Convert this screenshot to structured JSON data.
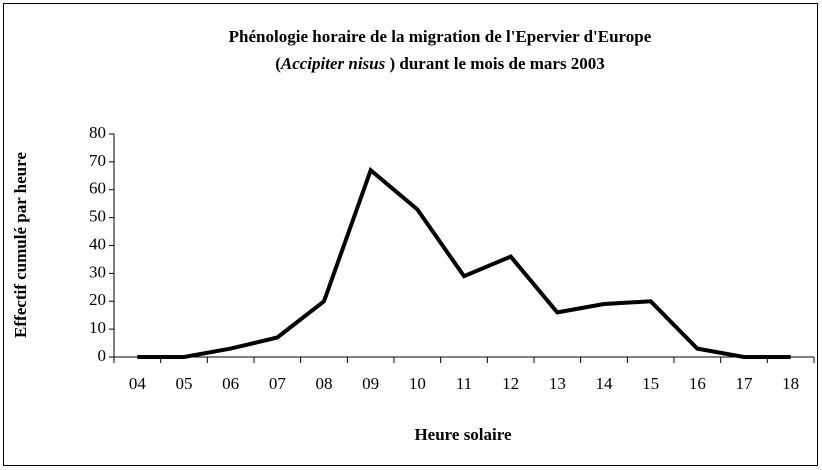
{
  "chart_data": {
    "type": "line",
    "title_lines": [
      [
        {
          "text": "Phénologie horaire de la migration de l'Epervier d'Europe",
          "italic": false
        }
      ],
      [
        {
          "text": "(",
          "italic": false
        },
        {
          "text": "Accipiter nisus",
          "italic": true
        },
        {
          "text": " ) durant le mois de mars 2003",
          "italic": false
        }
      ]
    ],
    "x_label": "Heure solaire",
    "y_label": "Effectif cumulé par heure",
    "categories": [
      "04",
      "05",
      "06",
      "07",
      "08",
      "09",
      "10",
      "11",
      "12",
      "13",
      "14",
      "15",
      "16",
      "17",
      "18"
    ],
    "values": [
      0,
      0,
      3,
      7,
      20,
      67,
      53,
      29,
      36,
      16,
      19,
      20,
      3,
      0,
      0
    ],
    "color": "#000000",
    "ylim": [
      0,
      80
    ],
    "yticks": [
      0,
      10,
      20,
      30,
      40,
      50,
      60,
      70,
      80
    ],
    "grid": false
  }
}
